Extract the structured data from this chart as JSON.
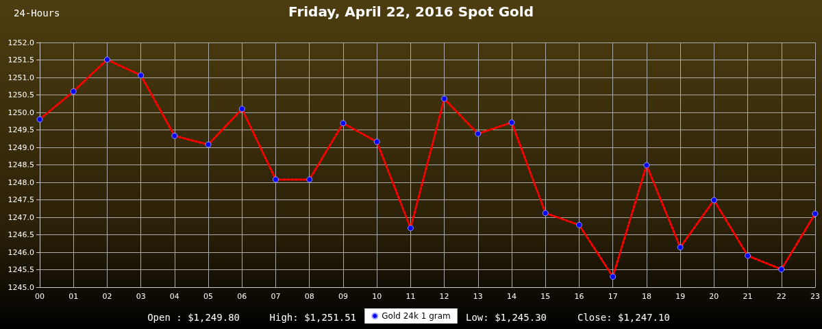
{
  "chart_data": {
    "type": "line",
    "title": "Friday, April 22, 2016 Spot Gold",
    "subtitle": "24-Hours",
    "categories": [
      "00",
      "01",
      "02",
      "03",
      "04",
      "05",
      "06",
      "07",
      "08",
      "09",
      "10",
      "11",
      "12",
      "13",
      "14",
      "15",
      "16",
      "17",
      "18",
      "19",
      "20",
      "21",
      "22",
      "23"
    ],
    "series": [
      {
        "name": "Gold 24k 1 gram",
        "color": "#ff0000",
        "values": [
          1249.8,
          1250.6,
          1251.51,
          1251.06,
          1249.33,
          1249.08,
          1250.1,
          1248.08,
          1248.08,
          1249.69,
          1249.16,
          1246.69,
          1250.39,
          1249.39,
          1249.71,
          1247.12,
          1246.78,
          1245.3,
          1248.49,
          1246.14,
          1247.49,
          1245.9,
          1245.51,
          1247.1
        ]
      }
    ],
    "ylim": [
      1245,
      1252
    ],
    "yticks": [
      {
        "value": 1245,
        "label": "1245.0"
      },
      {
        "value": 1245.5,
        "label": "1245.5"
      },
      {
        "value": 1246,
        "label": "1246.0"
      },
      {
        "value": 1246.5,
        "label": "1246.5"
      },
      {
        "value": 1247,
        "label": "1247.0"
      },
      {
        "value": 1247.5,
        "label": "1247.5"
      },
      {
        "value": 1248,
        "label": "1248.0"
      },
      {
        "value": 1248.5,
        "label": "1248.5"
      },
      {
        "value": 1249,
        "label": "1249.0"
      },
      {
        "value": 1249.5,
        "label": "1249.5"
      },
      {
        "value": 1250,
        "label": "1250.0"
      },
      {
        "value": 1250.5,
        "label": "1250.5"
      },
      {
        "value": 1251,
        "label": "1251.0"
      },
      {
        "value": 1251.5,
        "label": "1251.5"
      },
      {
        "value": 1252,
        "label": "1252.0"
      }
    ],
    "annotations": [
      "Open : $1,249.80",
      "High: $1,251.51",
      "Low: $1,245.30",
      "Close: $1,247.10"
    ],
    "grid": true,
    "legend": "bottom",
    "marker": "circle",
    "line_style": "dotted"
  }
}
